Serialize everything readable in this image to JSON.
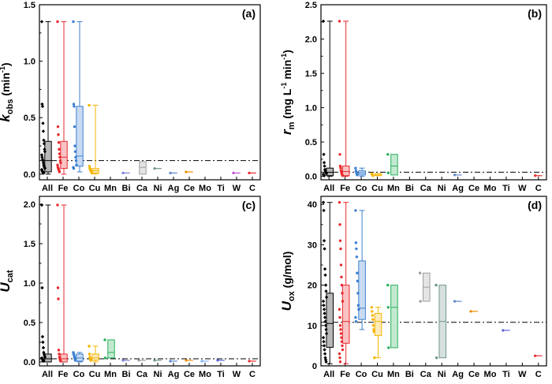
{
  "colors": {
    "All": "#000000",
    "Fe": "#e8292d",
    "Co": "#3b7fd0",
    "Cu": "#f5b400",
    "Mn": "#27b05a",
    "Bi": "#7a7fd6",
    "Ca": "#9e9e9e",
    "Ni": "#6e948c",
    "Ag": "#5f86c9",
    "Ce": "#f08a00",
    "Mo": "#7fb3ff",
    "Ti": "#5a63d8",
    "W": "#c44fd1",
    "C": "#e8292d"
  },
  "chart_data": [
    {
      "panel": "(a)",
      "type": "box",
      "ylabel_main": "k",
      "ylabel_sub": "obs",
      "ylabel_unit": "(min",
      "ylabel_sup": "-1",
      "ylabel_close": ")",
      "ylim": [
        -0.05,
        1.5
      ],
      "yticks": [
        0.0,
        0.5,
        1.0,
        1.5
      ],
      "tick_labels": [
        "0.0",
        "0.5",
        "1.0",
        "1.5"
      ],
      "categories": [
        "All",
        "Fe",
        "Co",
        "Cu",
        "Mn",
        "Bi",
        "Ca",
        "Ni",
        "Ag",
        "Ce",
        "Mo",
        "Ti",
        "W",
        "C"
      ],
      "reference_line": 0.12,
      "boxes": [
        {
          "cat": "All",
          "q1": 0.02,
          "median": 0.12,
          "q3": 0.29,
          "min": 0.0,
          "max": 1.35,
          "points": [
            1.35,
            0.62,
            0.6,
            0.45,
            0.38,
            0.3,
            0.27,
            0.22,
            0.2,
            0.17,
            0.15,
            0.13,
            0.12,
            0.1,
            0.08,
            0.07,
            0.06,
            0.05,
            0.04,
            0.03,
            0.02,
            0.02,
            0.01,
            0.01
          ]
        },
        {
          "cat": "Fe",
          "q1": 0.05,
          "median": 0.15,
          "q3": 0.29,
          "min": 0.0,
          "max": 1.35,
          "points": [
            1.35,
            0.42,
            0.35,
            0.28,
            0.22,
            0.18,
            0.15,
            0.12,
            0.1,
            0.08,
            0.06,
            0.05,
            0.04,
            0.03,
            0.02
          ]
        },
        {
          "cat": "Co",
          "q1": 0.07,
          "median": 0.16,
          "q3": 0.6,
          "min": 0.02,
          "max": 1.35,
          "points": [
            1.35,
            0.62,
            0.6,
            0.42,
            0.25,
            0.2,
            0.15,
            0.12,
            0.08,
            0.06,
            0.05
          ]
        },
        {
          "cat": "Cu",
          "q1": 0.01,
          "median": 0.03,
          "q3": 0.05,
          "min": 0.0,
          "max": 0.61,
          "points": [
            0.61,
            0.07,
            0.05,
            0.04,
            0.03,
            0.03,
            0.02,
            0.01
          ]
        },
        {
          "cat": "Bi",
          "single": 0.01
        },
        {
          "cat": "Ca",
          "q1": 0.0,
          "median": 0.06,
          "q3": 0.11
        },
        {
          "cat": "Ni",
          "single": 0.05
        },
        {
          "cat": "Ag",
          "single": 0.01
        },
        {
          "cat": "Ce",
          "single": 0.02
        },
        {
          "cat": "W",
          "single": 0.01
        },
        {
          "cat": "C",
          "single": 0.01
        }
      ]
    },
    {
      "panel": "(b)",
      "type": "box",
      "ylabel_main": "r",
      "ylabel_sub": "m",
      "ylabel_unit": "(mg L",
      "ylabel_sup": "-1",
      "ylabel_unit2": " min",
      "ylabel_sup2": "-1",
      "ylabel_close": ")",
      "ylim": [
        -0.05,
        2.5
      ],
      "yticks": [
        0.0,
        0.5,
        1.0,
        1.5,
        2.0,
        2.5
      ],
      "tick_labels": [
        "0.0",
        "0.5",
        "1.0",
        "1.5",
        "2.0",
        "2.5"
      ],
      "categories": [
        "All",
        "Fe",
        "Co",
        "Cu",
        "Mn",
        "Bi",
        "Ca",
        "Ni",
        "Ag",
        "Ce",
        "Mo",
        "Ti",
        "W",
        "C"
      ],
      "reference_line": 0.06,
      "boxes": [
        {
          "cat": "All",
          "q1": 0.01,
          "median": 0.06,
          "q3": 0.12,
          "min": 0.0,
          "max": 2.26,
          "points": [
            2.26,
            0.32,
            0.2,
            0.15,
            0.1,
            0.08,
            0.06,
            0.05,
            0.04,
            0.03,
            0.02,
            0.01
          ]
        },
        {
          "cat": "Fe",
          "q1": 0.01,
          "median": 0.07,
          "q3": 0.15,
          "min": 0.0,
          "max": 2.26,
          "points": [
            2.26,
            0.32,
            0.15,
            0.12,
            0.08,
            0.06,
            0.04,
            0.02,
            0.01
          ]
        },
        {
          "cat": "Co",
          "q1": 0.02,
          "median": 0.05,
          "q3": 0.08,
          "min": 0.0,
          "max": 0.12,
          "points": [
            0.12,
            0.08,
            0.06,
            0.04,
            0.02
          ]
        },
        {
          "cat": "Cu",
          "q1": 0.01,
          "median": 0.02,
          "q3": 0.04,
          "points": [
            0.04,
            0.03,
            0.02,
            0.01
          ]
        },
        {
          "cat": "Mn",
          "q1": 0.02,
          "median": 0.15,
          "q3": 0.32,
          "points": [
            0.32,
            0.05
          ]
        },
        {
          "cat": "Ag",
          "single": 0.02
        },
        {
          "cat": "C",
          "single": 0.01
        }
      ]
    },
    {
      "panel": "(c)",
      "type": "box",
      "ylabel_main": "U",
      "ylabel_sub": "cat",
      "ylim": [
        -0.05,
        2.1
      ],
      "yticks": [
        0.0,
        0.5,
        1.0,
        1.5,
        2.0
      ],
      "tick_labels": [
        "0.0",
        "0.5",
        "1.0",
        "1.5",
        "2.0"
      ],
      "categories": [
        "All",
        "Fe",
        "Co",
        "Cu",
        "Mn",
        "Bi",
        "Ca",
        "Ni",
        "Ag",
        "Ce",
        "Mo",
        "Ti",
        "W",
        "C"
      ],
      "reference_line": 0.04,
      "boxes": [
        {
          "cat": "All",
          "q1": 0.0,
          "median": 0.04,
          "q3": 0.1,
          "min": 0.0,
          "max": 1.99,
          "points": [
            1.99,
            0.94,
            0.32,
            0.25,
            0.18,
            0.12,
            0.1,
            0.08,
            0.06,
            0.05,
            0.04,
            0.03,
            0.02,
            0.01
          ]
        },
        {
          "cat": "Fe",
          "q1": 0.0,
          "median": 0.04,
          "q3": 0.1,
          "min": 0.0,
          "max": 1.99,
          "points": [
            1.99,
            0.94,
            0.8,
            0.15,
            0.1,
            0.06,
            0.04,
            0.02,
            0.01
          ]
        },
        {
          "cat": "Co",
          "q1": 0.01,
          "median": 0.05,
          "q3": 0.1,
          "min": 0.0,
          "max": 0.12,
          "points": [
            0.12,
            0.1,
            0.08,
            0.06,
            0.04,
            0.02
          ]
        },
        {
          "cat": "Cu",
          "q1": 0.02,
          "median": 0.05,
          "q3": 0.1,
          "min": 0.0,
          "max": 0.2,
          "points": [
            0.2,
            0.1,
            0.06,
            0.04,
            0.02
          ]
        },
        {
          "cat": "Mn",
          "q1": 0.05,
          "median": 0.12,
          "q3": 0.28,
          "points": [
            0.28,
            0.05
          ]
        },
        {
          "cat": "Bi",
          "single": 0.02
        },
        {
          "cat": "Ca",
          "single": 0.02
        },
        {
          "cat": "Ni",
          "single": 0.02
        },
        {
          "cat": "Ag",
          "single": 0.01
        },
        {
          "cat": "Ce",
          "single": 0.02
        },
        {
          "cat": "Mo",
          "single": 0.01
        },
        {
          "cat": "Ti",
          "single": 0.02
        },
        {
          "cat": "C",
          "single": 0.01
        }
      ]
    },
    {
      "panel": "(d)",
      "type": "box",
      "ylabel_main": "U",
      "ylabel_sub": "ox",
      "ylabel_unit": "(g/mol)",
      "ylim": [
        0,
        42
      ],
      "yticks": [
        0,
        10,
        20,
        30,
        40
      ],
      "tick_labels": [
        "0",
        "10",
        "20",
        "30",
        "40"
      ],
      "categories": [
        "All",
        "Fe",
        "Co",
        "Cu",
        "Mn",
        "Bi",
        "Ca",
        "Ni",
        "Ag",
        "Ce",
        "Mo",
        "Ti",
        "W",
        "C"
      ],
      "reference_line": 10.8,
      "boxes": [
        {
          "cat": "All",
          "q1": 4.6,
          "median": 10.5,
          "q3": 18.0,
          "min": 0.5,
          "max": 40.5,
          "points": [
            40.5,
            38.5,
            31.0,
            29.0,
            24.0,
            22.5,
            20.0,
            18.5,
            17.0,
            16.0,
            15.0,
            14.0,
            13.0,
            12.0,
            11.0,
            10.0,
            9.0,
            8.0,
            7.0,
            6.0,
            5.0,
            4.0,
            3.0,
            2.0,
            1.5,
            1.0
          ]
        },
        {
          "cat": "Fe",
          "q1": 5.6,
          "median": 11.0,
          "q3": 20.0,
          "min": 0.5,
          "max": 40.5,
          "points": [
            40.5,
            35.0,
            31.0,
            29.0,
            25.0,
            22.0,
            20.0,
            18.0,
            16.0,
            14.0,
            12.0,
            10.0,
            9.0,
            8.0,
            7.0,
            6.0,
            5.0,
            4.0,
            3.0,
            2.0,
            1.0
          ]
        },
        {
          "cat": "Co",
          "q1": 11.5,
          "median": 14.3,
          "q3": 26.0,
          "min": 9.0,
          "max": 38.5,
          "points": [
            38.5,
            30.5,
            29.0,
            27.0,
            23.0,
            21.0,
            18.0,
            15.0,
            14.0,
            12.0,
            11.0
          ]
        },
        {
          "cat": "Cu",
          "q1": 7.5,
          "median": 11.0,
          "q3": 13.0,
          "min": 2.0,
          "max": 14.5,
          "points": [
            14.5,
            13.5,
            12.5,
            11.5,
            10.0,
            9.0,
            8.5,
            2.0
          ]
        },
        {
          "cat": "Mn",
          "q1": 4.5,
          "median": 14.5,
          "q3": 20.0,
          "points": [
            20.0,
            14.5,
            4.5
          ]
        },
        {
          "cat": "Ca",
          "q1": 16.0,
          "median": 19.5,
          "q3": 23.0,
          "points": [
            23.0,
            16.0
          ]
        },
        {
          "cat": "Ni",
          "q1": 2.0,
          "median": 11.0,
          "q3": 20.0,
          "points": [
            20.0,
            2.0
          ]
        },
        {
          "cat": "Ag",
          "single": 16.0
        },
        {
          "cat": "Ce",
          "single": 13.5
        },
        {
          "cat": "Ti",
          "single": 8.8
        },
        {
          "cat": "C",
          "single": 2.5
        }
      ]
    }
  ]
}
